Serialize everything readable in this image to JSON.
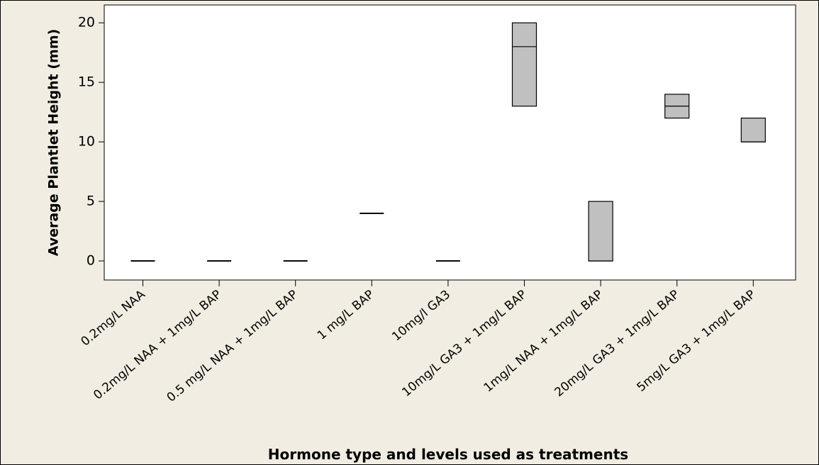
{
  "chart_data": {
    "type": "boxplot",
    "title": "",
    "xlabel": "Hormone type and levels used as treatments",
    "ylabel": "Average Plantlet Height (mm)",
    "ylim": [
      -1.6,
      21.5
    ],
    "yticks": [
      0,
      5,
      10,
      15,
      20
    ],
    "grid": false,
    "legend": "none",
    "categories": [
      "0.2mg/L NAA",
      "0.2mg/L NAA + 1mg/L BAP",
      "0.5 mg/L NAA + 1mg/L BAP",
      "1 mg/L BAP",
      "10mg/l GA3",
      "10mg/L GA3 + 1mg/L BAP",
      "1mg/L NAA + 1mg/L BAP",
      "20mg/L GA3 + 1mg/L BAP",
      "5mg/L GA3 + 1mg/L BAP"
    ],
    "boxes": [
      {
        "q1": 0,
        "median": 0,
        "q3": 0
      },
      {
        "q1": 0,
        "median": 0,
        "q3": 0
      },
      {
        "q1": 0,
        "median": 0,
        "q3": 0
      },
      {
        "q1": 4,
        "median": 4,
        "q3": 4
      },
      {
        "q1": 0,
        "median": 0,
        "q3": 0
      },
      {
        "q1": 13,
        "median": 18,
        "q3": 20
      },
      {
        "q1": 0,
        "median": 0,
        "q3": 5
      },
      {
        "q1": 12,
        "median": 13,
        "q3": 14
      },
      {
        "q1": 10,
        "median": 10,
        "q3": 12
      }
    ],
    "colors": {
      "background": "#f2ede2",
      "plot_background": "#ffffff",
      "box_fill": "#c0c0c0",
      "stroke": "#000000"
    }
  }
}
